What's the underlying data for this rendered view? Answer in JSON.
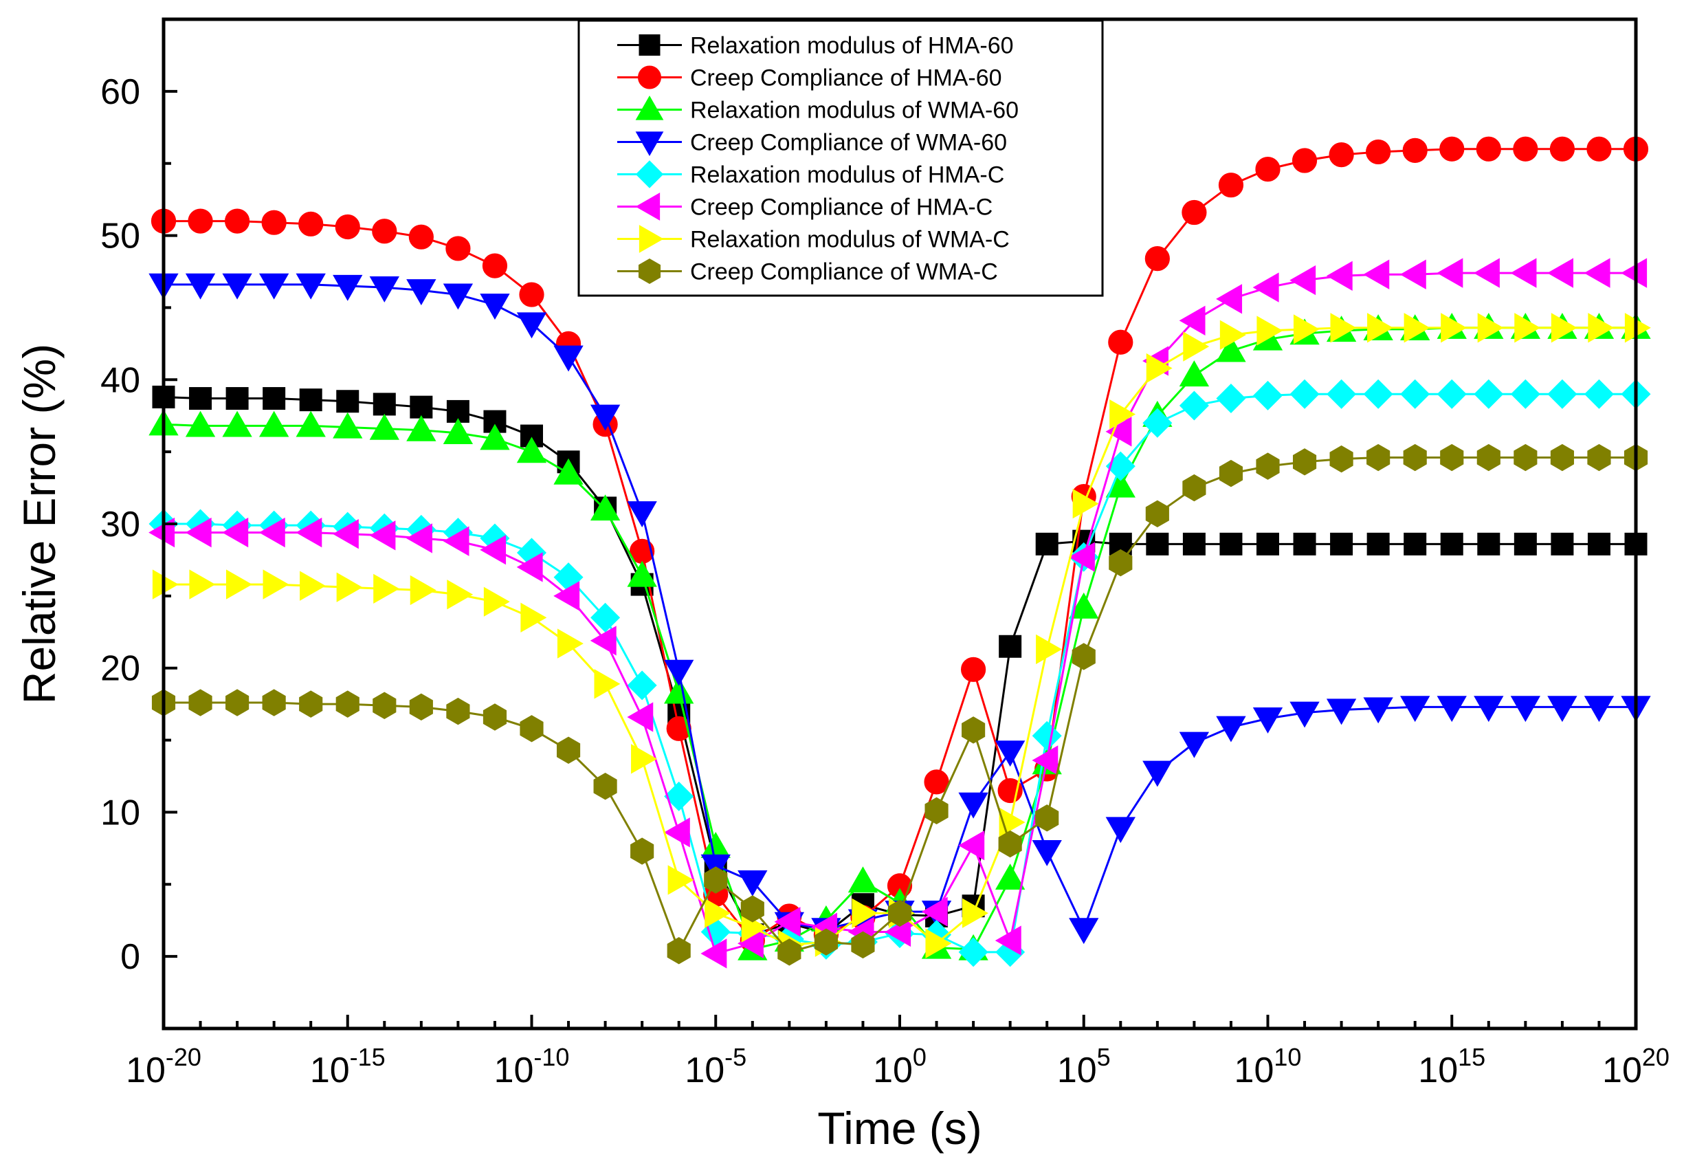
{
  "chart_data": {
    "type": "line",
    "title": "",
    "xlabel": "Time (s)",
    "ylabel": "Relative Error (%)",
    "xscale": "log",
    "xlim_exp": [
      -20,
      20
    ],
    "ylim": [
      -5,
      65
    ],
    "grid": false,
    "legend_position": "top-center",
    "x_ticks": [
      {
        "base": "10",
        "exp": "-20"
      },
      {
        "base": "10",
        "exp": "-15"
      },
      {
        "base": "10",
        "exp": "-10"
      },
      {
        "base": "10",
        "exp": "-5"
      },
      {
        "base": "10",
        "exp": "0"
      },
      {
        "base": "10",
        "exp": "5"
      },
      {
        "base": "10",
        "exp": "10"
      },
      {
        "base": "10",
        "exp": "15"
      },
      {
        "base": "10",
        "exp": "20"
      }
    ],
    "y_ticks": [
      "0",
      "10",
      "20",
      "30",
      "40",
      "50",
      "60"
    ],
    "x_exponents": [
      -20,
      -19,
      -18,
      -17,
      -16,
      -15,
      -14,
      -13,
      -12,
      -11,
      -10,
      -9,
      -8,
      -7,
      -6,
      -5,
      -4,
      -3,
      -2,
      -1,
      0,
      1,
      2,
      3,
      4,
      5,
      6,
      7,
      8,
      9,
      10,
      11,
      12,
      13,
      14,
      15,
      16,
      17,
      18,
      19,
      20
    ],
    "series": [
      {
        "name": "Relaxation modulus of HMA-60",
        "color": "#000000",
        "marker": "square",
        "values": [
          38.8,
          38.7,
          38.7,
          38.7,
          38.6,
          38.5,
          38.3,
          38.1,
          37.8,
          37.1,
          36.1,
          34.3,
          31.1,
          25.8,
          16.9,
          6.3,
          1.5,
          2.3,
          1.6,
          3.6,
          2.9,
          2.8,
          3.5,
          21.5,
          28.6,
          28.8,
          28.6,
          28.6,
          28.6,
          28.6,
          28.6,
          28.6,
          28.6,
          28.6,
          28.6,
          28.6,
          28.6,
          28.6,
          28.6,
          28.6,
          28.6
        ]
      },
      {
        "name": "Creep Compliance of HMA-60",
        "color": "#ff0000",
        "marker": "circle",
        "values": [
          51.0,
          51.0,
          51.0,
          50.9,
          50.8,
          50.6,
          50.3,
          49.9,
          49.1,
          47.9,
          45.9,
          42.5,
          36.9,
          28.1,
          15.8,
          4.3,
          1.1,
          2.8,
          1.5,
          2.7,
          4.9,
          12.1,
          19.9,
          11.5,
          13.0,
          31.9,
          42.6,
          48.4,
          51.6,
          53.5,
          54.6,
          55.2,
          55.6,
          55.8,
          55.9,
          56.0,
          56.0,
          56.0,
          56.0,
          56.0,
          56.0
        ]
      },
      {
        "name": "Relaxation modulus of WMA-60",
        "color": "#00ff00",
        "marker": "triangle-up",
        "values": [
          36.9,
          36.8,
          36.8,
          36.8,
          36.8,
          36.7,
          36.6,
          36.5,
          36.3,
          35.9,
          35.0,
          33.5,
          31.0,
          26.4,
          18.3,
          7.6,
          0.5,
          1.1,
          2.5,
          5.2,
          3.7,
          0.6,
          0.5,
          5.4,
          13.4,
          24.2,
          32.6,
          37.5,
          40.3,
          42.0,
          42.8,
          43.2,
          43.4,
          43.5,
          43.5,
          43.6,
          43.6,
          43.6,
          43.6,
          43.6,
          43.6
        ]
      },
      {
        "name": "Creep Compliance of WMA-60",
        "color": "#0000ff",
        "marker": "triangle-down",
        "values": [
          46.6,
          46.6,
          46.6,
          46.6,
          46.6,
          46.5,
          46.4,
          46.2,
          45.9,
          45.2,
          43.9,
          41.6,
          37.5,
          30.8,
          19.8,
          6.3,
          5.2,
          2.3,
          1.9,
          2.5,
          3.1,
          3.1,
          10.6,
          14.2,
          7.3,
          1.9,
          8.9,
          12.8,
          14.8,
          15.9,
          16.5,
          16.9,
          17.1,
          17.2,
          17.3,
          17.3,
          17.3,
          17.3,
          17.3,
          17.3,
          17.3
        ]
      },
      {
        "name": "Relaxation modulus of HMA-C",
        "color": "#00ffff",
        "marker": "diamond",
        "values": [
          30.0,
          30.0,
          29.9,
          29.9,
          29.9,
          29.8,
          29.7,
          29.6,
          29.4,
          29.0,
          28.0,
          26.3,
          23.5,
          18.8,
          11.1,
          1.7,
          1.6,
          1.2,
          0.8,
          1.0,
          1.6,
          1.5,
          0.3,
          0.3,
          15.3,
          27.7,
          34.0,
          37.0,
          38.2,
          38.7,
          38.9,
          39.0,
          39.0,
          39.0,
          39.0,
          39.0,
          39.0,
          39.0,
          39.0,
          39.0,
          39.0
        ]
      },
      {
        "name": "Creep Compliance of HMA-C",
        "color": "#ff00ff",
        "marker": "triangle-left",
        "values": [
          29.4,
          29.4,
          29.4,
          29.4,
          29.4,
          29.3,
          29.2,
          29.0,
          28.8,
          28.2,
          27.0,
          25.0,
          21.9,
          16.6,
          8.6,
          0.2,
          0.9,
          2.4,
          2.0,
          1.7,
          1.7,
          3.1,
          7.7,
          1.1,
          13.6,
          27.7,
          36.4,
          41.3,
          44.1,
          45.6,
          46.4,
          46.9,
          47.2,
          47.3,
          47.3,
          47.4,
          47.4,
          47.4,
          47.4,
          47.4,
          47.4
        ]
      },
      {
        "name": "Relaxation modulus of WMA-C",
        "color": "#ffff00",
        "marker": "triangle-right",
        "values": [
          25.8,
          25.8,
          25.8,
          25.8,
          25.7,
          25.6,
          25.5,
          25.4,
          25.1,
          24.6,
          23.5,
          21.7,
          18.9,
          13.7,
          5.3,
          3.0,
          2.0,
          0.8,
          1.0,
          3.0,
          3.0,
          0.9,
          3.0,
          9.3,
          21.3,
          31.4,
          37.6,
          40.8,
          42.3,
          43.1,
          43.4,
          43.5,
          43.6,
          43.6,
          43.6,
          43.6,
          43.6,
          43.6,
          43.6,
          43.6,
          43.6
        ]
      },
      {
        "name": "Creep Compliance of WMA-C",
        "color": "#808000",
        "marker": "hexagon",
        "values": [
          17.6,
          17.6,
          17.6,
          17.6,
          17.5,
          17.5,
          17.4,
          17.3,
          17.0,
          16.6,
          15.8,
          14.3,
          11.8,
          7.3,
          0.4,
          5.3,
          3.3,
          0.3,
          1.0,
          0.8,
          3.0,
          10.1,
          15.7,
          7.8,
          9.6,
          20.8,
          27.3,
          30.7,
          32.5,
          33.5,
          34.0,
          34.3,
          34.5,
          34.6,
          34.6,
          34.6,
          34.6,
          34.6,
          34.6,
          34.6,
          34.6
        ]
      }
    ]
  }
}
